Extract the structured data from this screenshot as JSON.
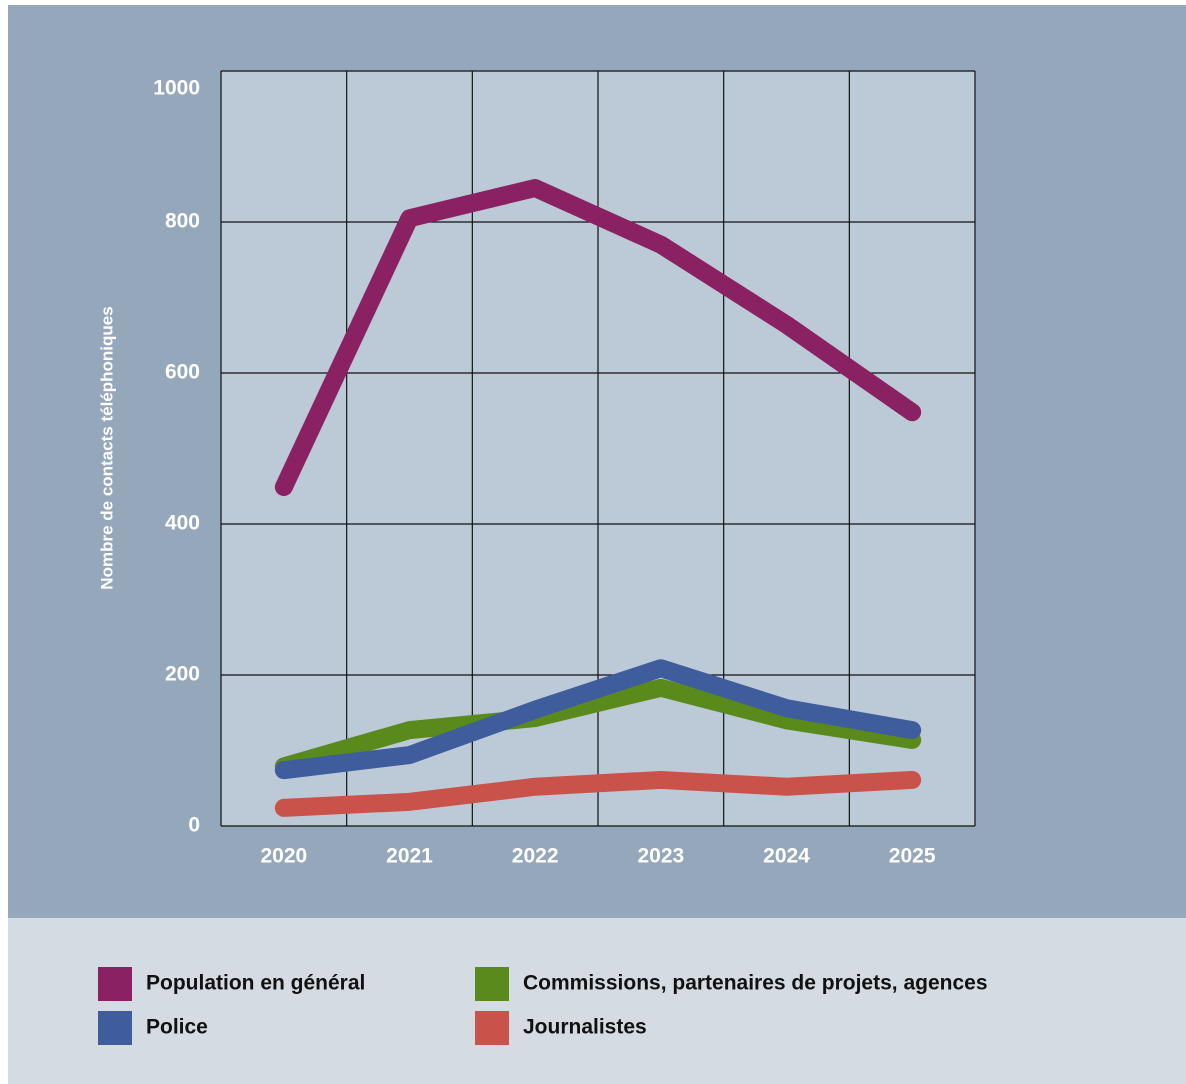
{
  "chart_data": {
    "type": "line",
    "ylabel": "Nombre de contacts téléphoniques",
    "categories": [
      "2020",
      "2021",
      "2022",
      "2023",
      "2024",
      "2025"
    ],
    "series": [
      {
        "name": "Population en général",
        "color": "#8a2163",
        "values": [
          449,
          805,
          845,
          770,
          664,
          548
        ]
      },
      {
        "name": "Commissions, partenaires de projets, agences",
        "color": "#5b8a1c",
        "values": [
          79,
          127,
          143,
          183,
          140,
          114
        ]
      },
      {
        "name": "Police",
        "color": "#3f5d9c",
        "values": [
          74,
          94,
          154,
          209,
          156,
          127
        ]
      },
      {
        "name": "Journalistes",
        "color": "#c9524b",
        "values": [
          24,
          32,
          52,
          61,
          52,
          61
        ]
      }
    ],
    "ylim": [
      0,
      1000
    ],
    "yticks": [
      0,
      200,
      400,
      600,
      800,
      1000
    ],
    "grid": true
  }
}
